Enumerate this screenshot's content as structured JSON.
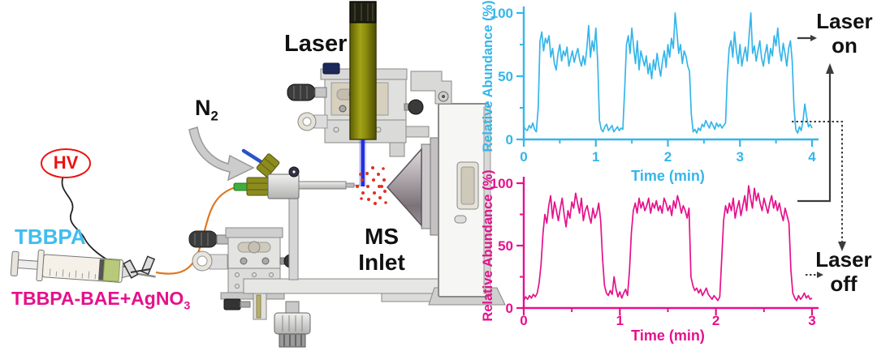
{
  "figure": {
    "apparatus": {
      "hv_label": "HV",
      "sample_top_label": "TBBPA",
      "sample_bottom_label_main": "TBBPA-BAE+AgNO",
      "sample_bottom_label_sub": "3",
      "gas_label_main": "N",
      "gas_label_sub": "2",
      "laser_label": "Laser",
      "ms_inlet_label": "MS\nInlet",
      "colors": {
        "hv_red": "#ee1111",
        "tbbpa_cyan": "#3fbdf0",
        "sample_magenta": "#e5118c",
        "capillary_orange": "#e07820",
        "laser_body_olive": "#8f8f12",
        "beam_blue": "#2430dd",
        "spray_red": "#e03022",
        "n2_tube_blue": "#2a52c8",
        "fitting_green": "#3fae3f"
      }
    },
    "annotations": {
      "laser_on_label": "Laser\non",
      "laser_off_label": "Laser\noff"
    }
  },
  "chart_data": [
    {
      "type": "line",
      "title": "",
      "xlabel": "Time (min)",
      "ylabel": "Relative Abundance (%)",
      "xlim": [
        0,
        4
      ],
      "ylim": [
        0,
        100
      ],
      "x_ticks": [
        0,
        1,
        2,
        3,
        4
      ],
      "x_minor_ticks": [
        0.5,
        1.5,
        2.5,
        3.5
      ],
      "y_ticks": [
        0,
        50,
        100
      ],
      "y_minor_ticks": [
        25,
        75
      ],
      "grid": false,
      "legend": "none",
      "color": "#35b6ea",
      "x_start": 0,
      "x_step": 0.025,
      "values": [
        10,
        8,
        7,
        11,
        9,
        13,
        8,
        6,
        25,
        78,
        85,
        70,
        80,
        76,
        82,
        65,
        72,
        60,
        55,
        68,
        75,
        62,
        70,
        66,
        73,
        58,
        64,
        70,
        61,
        67,
        72,
        63,
        58,
        66,
        59,
        72,
        90,
        65,
        78,
        70,
        88,
        62,
        15,
        8,
        6,
        10,
        12,
        7,
        9,
        11,
        6,
        8,
        10,
        7,
        9,
        8,
        40,
        75,
        82,
        68,
        88,
        73,
        60,
        78,
        55,
        70,
        64,
        58,
        66,
        52,
        60,
        48,
        63,
        55,
        68,
        58,
        50,
        62,
        70,
        57,
        75,
        65,
        80,
        72,
        100,
        85,
        68,
        75,
        60,
        70,
        66,
        58,
        54,
        20,
        6,
        8,
        5,
        9,
        7,
        12,
        10,
        15,
        12,
        9,
        14,
        11,
        8,
        13,
        10,
        12,
        9,
        11,
        13,
        50,
        72,
        78,
        65,
        85,
        70,
        60,
        75,
        58,
        66,
        73,
        62,
        80,
        100,
        68,
        74,
        62,
        70,
        78,
        64,
        58,
        68,
        75,
        60,
        72,
        66,
        82,
        74,
        88,
        70,
        62,
        76,
        68,
        58,
        72,
        78,
        62,
        25,
        8,
        5,
        10,
        7,
        15,
        28,
        18,
        10,
        12,
        9
      ]
    },
    {
      "type": "line",
      "title": "",
      "xlabel": "Time (min)",
      "ylabel": "Relative Abundance (%)",
      "xlim": [
        0,
        3
      ],
      "ylim": [
        0,
        100
      ],
      "x_ticks": [
        0,
        1,
        2,
        3
      ],
      "x_minor_ticks": [
        0.5,
        1.5,
        2.5
      ],
      "y_ticks": [
        0,
        50,
        100
      ],
      "y_minor_ticks": [
        25,
        75
      ],
      "grid": false,
      "legend": "none",
      "color": "#e5118c",
      "x_start": 0,
      "x_step": 0.02,
      "values": [
        6,
        9,
        7,
        10,
        8,
        11,
        9,
        12,
        20,
        35,
        60,
        75,
        68,
        82,
        90,
        72,
        85,
        78,
        70,
        80,
        88,
        75,
        65,
        78,
        72,
        85,
        80,
        92,
        84,
        76,
        88,
        70,
        78,
        82,
        74,
        68,
        80,
        72,
        76,
        84,
        70,
        40,
        18,
        12,
        10,
        14,
        11,
        25,
        15,
        9,
        13,
        8,
        12,
        15,
        10,
        30,
        60,
        78,
        84,
        76,
        88,
        80,
        85,
        78,
        82,
        88,
        76,
        84,
        80,
        86,
        78,
        82,
        76,
        88,
        84,
        78,
        82,
        74,
        86,
        80,
        90,
        84,
        76,
        82,
        78,
        72,
        80,
        25,
        18,
        14,
        16,
        12,
        15,
        10,
        13,
        16,
        11,
        9,
        7,
        10,
        8,
        6,
        9,
        40,
        70,
        82,
        76,
        84,
        78,
        88,
        72,
        80,
        86,
        74,
        82,
        90,
        78,
        98,
        88,
        80,
        96,
        86,
        92,
        84,
        78,
        88,
        82,
        76,
        84,
        90,
        80,
        86,
        78,
        84,
        76,
        70,
        80,
        74,
        68,
        30,
        12,
        8,
        6,
        10,
        7,
        9,
        12,
        8,
        10,
        7,
        8
      ]
    }
  ]
}
